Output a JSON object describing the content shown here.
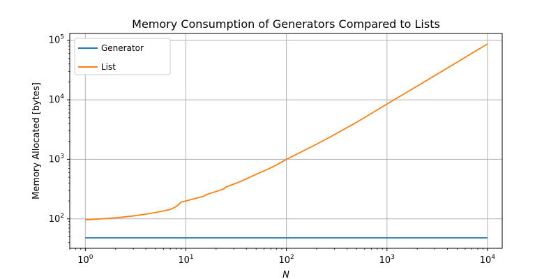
{
  "chart_data": {
    "type": "line",
    "title": "Memory Consumption of Generators Compared to Lists",
    "xlabel": "N",
    "ylabel": "Memory Allocated [bytes]",
    "xscale": "log",
    "yscale": "log",
    "xlim": [
      0.7,
      14000
    ],
    "ylim": [
      32,
      130000
    ],
    "grid": true,
    "legend": "top-left",
    "x_ticks": [
      {
        "base": "10",
        "exp": "0",
        "value": 1
      },
      {
        "base": "10",
        "exp": "1",
        "value": 10
      },
      {
        "base": "10",
        "exp": "2",
        "value": 100
      },
      {
        "base": "10",
        "exp": "3",
        "value": 1000
      },
      {
        "base": "10",
        "exp": "4",
        "value": 10000
      }
    ],
    "y_ticks": [
      {
        "base": "10",
        "exp": "2",
        "value": 100
      },
      {
        "base": "10",
        "exp": "3",
        "value": 1000
      },
      {
        "base": "10",
        "exp": "4",
        "value": 10000
      },
      {
        "base": "10",
        "exp": "5",
        "value": 100000
      }
    ],
    "series": [
      {
        "name": "Generator",
        "color": "#1f77b4",
        "x": [
          1,
          10000
        ],
        "y": [
          48,
          48
        ]
      },
      {
        "name": "List",
        "color": "#ff7f0e",
        "x": [
          1,
          2,
          3,
          4,
          5,
          6,
          7,
          8,
          9,
          10,
          15,
          16,
          20,
          24,
          25,
          30,
          35,
          40,
          50,
          60,
          70,
          80,
          100,
          200,
          300,
          500,
          1000,
          2000,
          5000,
          10000
        ],
        "y": [
          96,
          104,
          112,
          120,
          128,
          136,
          144,
          160,
          192,
          200,
          240,
          256,
          288,
          320,
          344,
          384,
          424,
          472,
          560,
          640,
          720,
          808,
          1000,
          1800,
          2600,
          4200,
          8500,
          17000,
          43000,
          87000
        ]
      }
    ]
  }
}
